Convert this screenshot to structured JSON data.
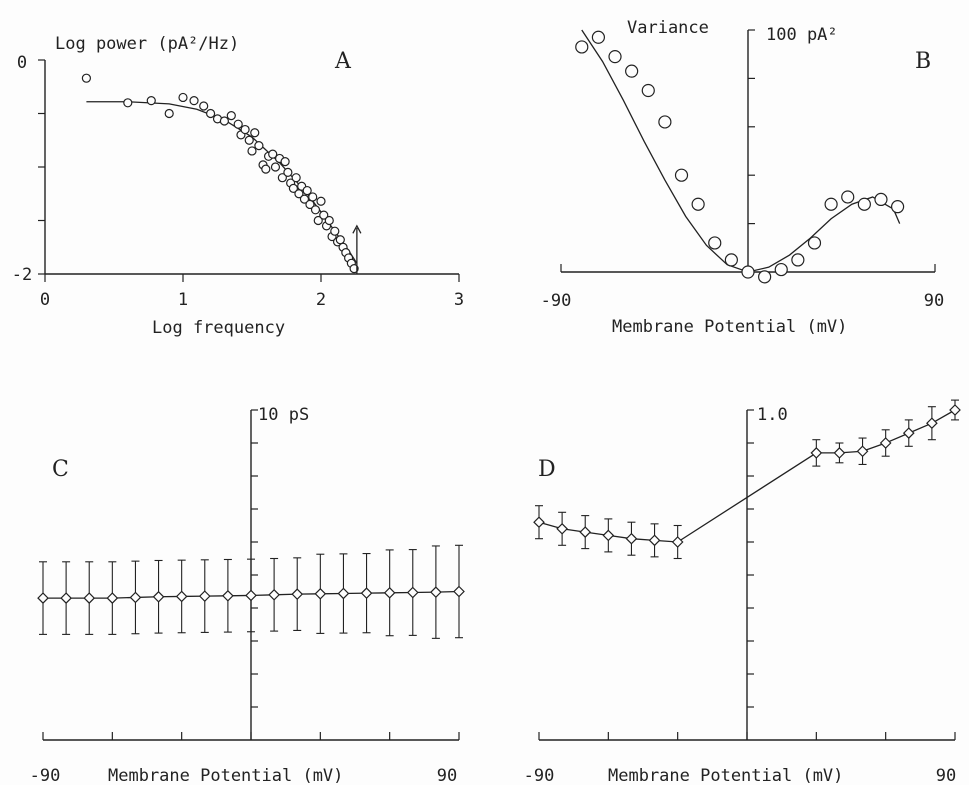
{
  "chart_data": [
    {
      "panel": "A",
      "type": "scatter",
      "ylabel": "Log power (pA²/Hz)",
      "xlabel": "Log frequency",
      "xlim": [
        0,
        3
      ],
      "ylim": [
        -2,
        0
      ],
      "x_ticks": [
        "0",
        "1",
        "2",
        "3"
      ],
      "y_ticks": [
        "0",
        "-2"
      ],
      "series": [
        {
          "kind": "points",
          "x": [
            0.3,
            0.6,
            0.77,
            0.9,
            1.0,
            1.08,
            1.15,
            1.2,
            1.25,
            1.3,
            1.35,
            1.4,
            1.42,
            1.45,
            1.48,
            1.5,
            1.52,
            1.55,
            1.58,
            1.6,
            1.62,
            1.65,
            1.67,
            1.7,
            1.72,
            1.74,
            1.76,
            1.78,
            1.8,
            1.82,
            1.84,
            1.86,
            1.88,
            1.9,
            1.92,
            1.94,
            1.96,
            1.98,
            2.0,
            2.02,
            2.04,
            2.06,
            2.08,
            2.1,
            2.12,
            2.14,
            2.16,
            2.18,
            2.2,
            2.22,
            2.24
          ],
          "y": [
            -0.17,
            -0.4,
            -0.38,
            -0.5,
            -0.35,
            -0.38,
            -0.43,
            -0.5,
            -0.55,
            -0.57,
            -0.52,
            -0.6,
            -0.7,
            -0.65,
            -0.75,
            -0.85,
            -0.68,
            -0.8,
            -0.98,
            -1.02,
            -0.9,
            -0.88,
            -1.0,
            -0.92,
            -1.1,
            -0.95,
            -1.05,
            -1.15,
            -1.2,
            -1.1,
            -1.25,
            -1.18,
            -1.3,
            -1.22,
            -1.35,
            -1.28,
            -1.4,
            -1.5,
            -1.32,
            -1.45,
            -1.55,
            -1.5,
            -1.65,
            -1.6,
            -1.7,
            -1.68,
            -1.75,
            -1.8,
            -1.85,
            -1.9,
            -1.95
          ]
        },
        {
          "kind": "fit",
          "x": [
            0.3,
            0.6,
            0.9,
            1.1,
            1.3,
            1.5,
            1.7,
            1.9,
            2.0,
            2.1,
            2.2,
            2.26
          ],
          "y": [
            -0.39,
            -0.39,
            -0.41,
            -0.46,
            -0.56,
            -0.72,
            -0.96,
            -1.25,
            -1.42,
            -1.6,
            -1.78,
            -1.9
          ]
        }
      ],
      "annotation": "arrow at x≈2.26"
    },
    {
      "panel": "B",
      "type": "scatter",
      "ylabel": "Variance",
      "y_scale_label": "100 pA²",
      "xlabel": "Membrane Potential (mV)",
      "xlim": [
        -90,
        90
      ],
      "ylim": [
        0,
        100
      ],
      "x_ticks": [
        "-90",
        "90"
      ],
      "series": [
        {
          "kind": "points",
          "x": [
            -80,
            -72,
            -64,
            -56,
            -48,
            -40,
            -32,
            -24,
            -16,
            -8,
            0,
            8,
            16,
            24,
            32,
            40,
            48,
            56,
            64,
            72
          ],
          "y": [
            93,
            97,
            89,
            83,
            75,
            62,
            40,
            28,
            12,
            5,
            0,
            -2,
            1,
            5,
            12,
            28,
            31,
            28,
            30,
            27
          ]
        },
        {
          "kind": "fit",
          "x": [
            -80,
            -70,
            -60,
            -50,
            -40,
            -30,
            -20,
            -10,
            0,
            10,
            20,
            30,
            40,
            50,
            60,
            70,
            73
          ],
          "y": [
            100,
            87,
            71,
            54,
            38,
            23,
            11,
            3,
            0,
            2,
            7,
            14,
            22,
            28,
            31,
            26,
            20
          ]
        }
      ]
    },
    {
      "panel": "C",
      "type": "line",
      "y_scale_label": "10 pS",
      "xlabel": "Membrane Potential (mV)",
      "xlim": [
        -90,
        90
      ],
      "ylim": [
        0,
        10
      ],
      "x_ticks": [
        "-90",
        "90"
      ],
      "series": [
        {
          "x": [
            -90,
            -80,
            -70,
            -60,
            -50,
            -40,
            -30,
            -20,
            -10,
            0,
            10,
            20,
            30,
            40,
            50,
            60,
            70,
            80,
            90
          ],
          "y": [
            4.3,
            4.3,
            4.3,
            4.3,
            4.32,
            4.34,
            4.35,
            4.36,
            4.37,
            4.38,
            4.4,
            4.42,
            4.43,
            4.44,
            4.45,
            4.46,
            4.47,
            4.48,
            4.5
          ],
          "err": [
            1.1,
            1.1,
            1.1,
            1.1,
            1.1,
            1.1,
            1.1,
            1.1,
            1.1,
            1.1,
            1.1,
            1.1,
            1.2,
            1.2,
            1.2,
            1.3,
            1.3,
            1.4,
            1.4
          ]
        }
      ]
    },
    {
      "panel": "D",
      "type": "line",
      "y_scale_label": "1.0",
      "xlabel": "Membrane Potential (mV)",
      "xlim": [
        -90,
        90
      ],
      "ylim": [
        0,
        1
      ],
      "x_ticks": [
        "-90",
        "90"
      ],
      "series": [
        {
          "x": [
            -90,
            -80,
            -70,
            -60,
            -50,
            -40,
            -30,
            30,
            40,
            50,
            60,
            70,
            80,
            90
          ],
          "y": [
            0.66,
            0.64,
            0.63,
            0.62,
            0.61,
            0.605,
            0.6,
            0.87,
            0.87,
            0.875,
            0.9,
            0.93,
            0.96,
            1.0
          ],
          "err": [
            0.05,
            0.05,
            0.05,
            0.05,
            0.05,
            0.05,
            0.05,
            0.04,
            0.03,
            0.04,
            0.04,
            0.04,
            0.05,
            0.03
          ]
        }
      ]
    }
  ]
}
